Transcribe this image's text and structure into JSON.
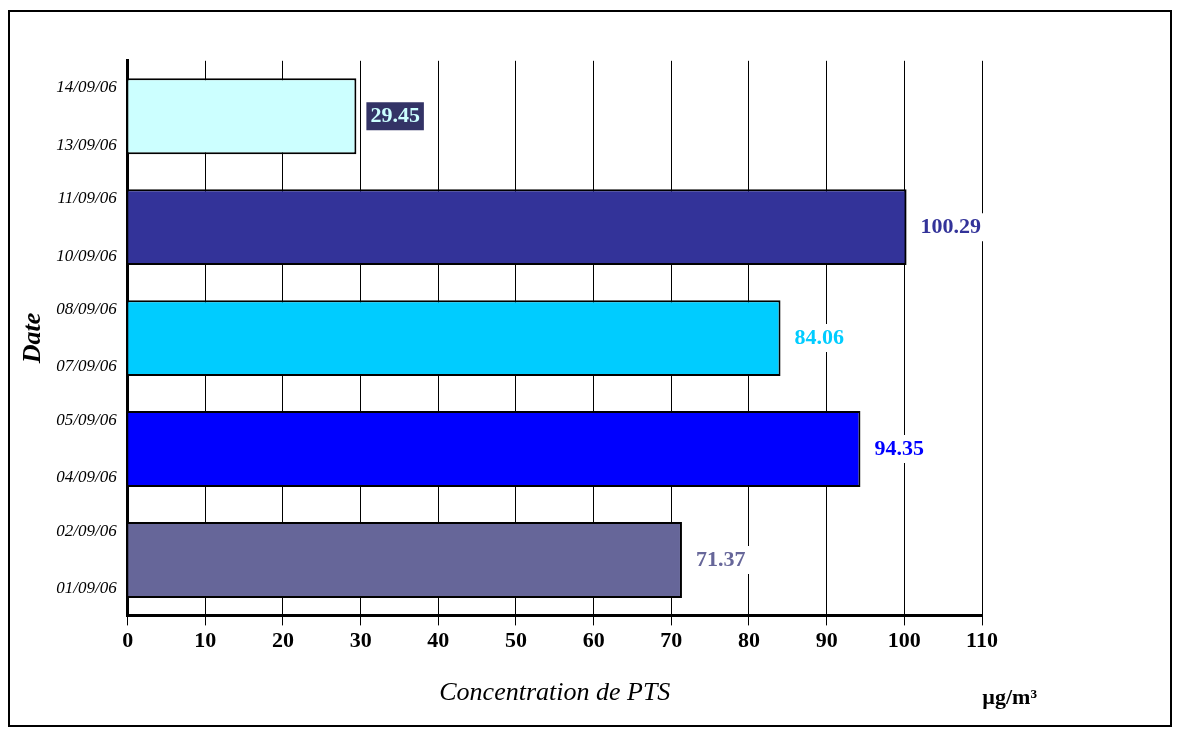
{
  "chart_data": {
    "type": "bar",
    "orientation": "horizontal",
    "xlabel": "Concentration de PTS",
    "ylabel": "Date",
    "categories": [
      "14/09/06\n13/09/06",
      "11/09/06\n10/09/06",
      "08/09/06\n07/09/06",
      "05/09/06\n04/09/06",
      "02/09/06\n01/09/06"
    ],
    "values": [
      29.45,
      100.29,
      84.06,
      94.35,
      71.37
    ],
    "colors": [
      "#ccffff",
      "#333399",
      "#00ccff",
      "#0000ff",
      "#666699"
    ],
    "xlim": [
      0,
      110
    ],
    "xticks": [
      0,
      10,
      20,
      30,
      40,
      50,
      60,
      70,
      80,
      90,
      100,
      110
    ],
    "grid": "x",
    "legend": false,
    "data_labels": true,
    "annotations": [
      "µg/m³"
    ]
  }
}
